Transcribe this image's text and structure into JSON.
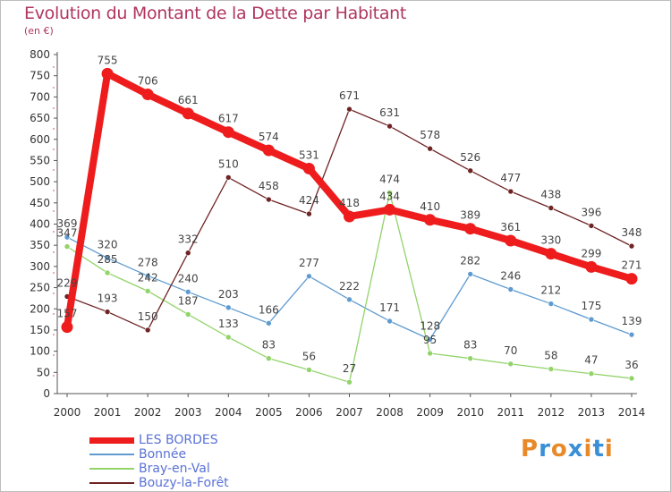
{
  "title": "Evolution du Montant de la Dette par Habitant",
  "unit_label": "(en €)",
  "logo": {
    "text": "Proxiti",
    "letters": [
      {
        "ch": "P",
        "color": "#e88a2a"
      },
      {
        "ch": "r",
        "color": "#3a8fd6"
      },
      {
        "ch": "o",
        "color": "#e88a2a"
      },
      {
        "ch": "x",
        "color": "#3a8fd6"
      },
      {
        "ch": "i",
        "color": "#e88a2a"
      },
      {
        "ch": "t",
        "color": "#3a8fd6"
      },
      {
        "ch": "i",
        "color": "#e88a2a"
      }
    ]
  },
  "chart_data": {
    "type": "line",
    "x": [
      "2000",
      "2001",
      "2002",
      "2003",
      "2004",
      "2005",
      "2006",
      "2007",
      "2008",
      "2009",
      "2010",
      "2011",
      "2012",
      "2013",
      "2014"
    ],
    "ylim": [
      0,
      800
    ],
    "yticks": [
      0,
      50,
      100,
      150,
      200,
      250,
      300,
      350,
      400,
      450,
      500,
      550,
      600,
      650,
      700,
      750,
      800
    ],
    "grid": false,
    "legend_position": "bottom-left",
    "series": [
      {
        "name": "LES BORDES",
        "color": "#ee1c1c",
        "emphasis": true,
        "values": [
          157,
          755,
          706,
          661,
          617,
          574,
          531,
          418,
          434,
          410,
          389,
          361,
          330,
          299,
          271
        ]
      },
      {
        "name": "Bonnée",
        "color": "#5f9bd0",
        "emphasis": false,
        "values": [
          369,
          320,
          278,
          240,
          203,
          166,
          277,
          222,
          171,
          128,
          282,
          246,
          212,
          175,
          139
        ]
      },
      {
        "name": "Bray-en-Val",
        "color": "#92d36a",
        "emphasis": false,
        "values": [
          347,
          285,
          242,
          187,
          133,
          83,
          56,
          27,
          474,
          95,
          83,
          70,
          58,
          47,
          36
        ]
      },
      {
        "name": "Bouzy-la-Forêt",
        "color": "#6e2324",
        "emphasis": false,
        "values": [
          229,
          193,
          150,
          332,
          510,
          458,
          424,
          671,
          631,
          578,
          526,
          477,
          438,
          396,
          348
        ]
      }
    ],
    "labels": {
      "LES BORDES": [
        "157",
        "755",
        "706",
        "661",
        "617",
        "574",
        "531",
        "418",
        "434",
        "410",
        "389",
        "361",
        "330",
        "299",
        "271"
      ],
      "Bonnée": [
        "369",
        "320",
        "278",
        "240",
        "203",
        "166",
        "277",
        "222",
        "171",
        "128",
        "282",
        "246",
        "212",
        "175",
        "139"
      ],
      "Bray-en-Val": [
        "347",
        "285",
        "242",
        "187",
        "133",
        "83",
        "56",
        "27",
        "474",
        "95",
        "83",
        "70",
        "58",
        "47",
        "36"
      ],
      "Bouzy-la-Forêt": [
        "229",
        "193",
        "150",
        "332",
        "510",
        "458",
        "424",
        "671",
        "631",
        "578",
        "526",
        "477",
        "438",
        "396",
        "348"
      ]
    }
  }
}
